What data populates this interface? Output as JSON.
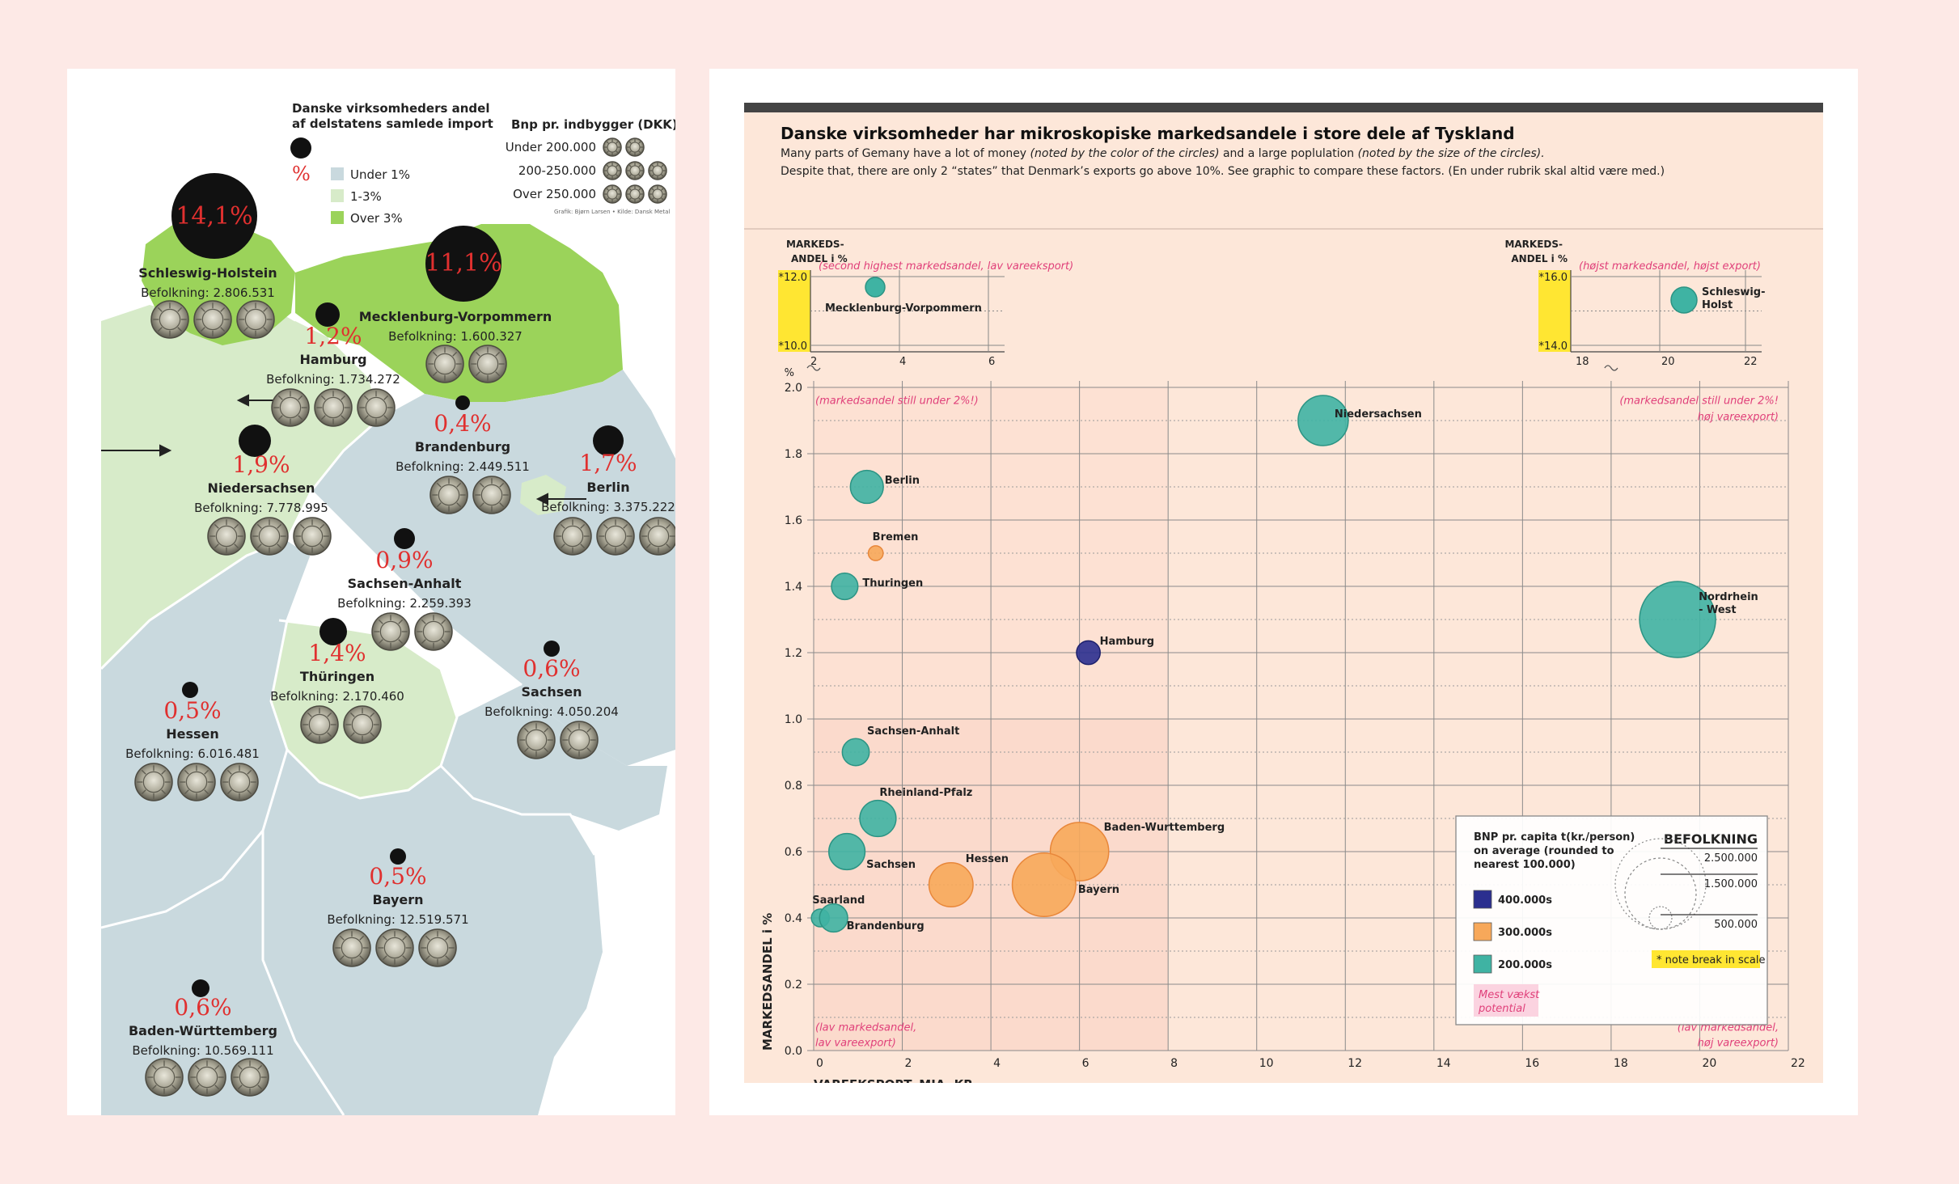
{
  "map": {
    "legend_share": {
      "title_line1": "Danske virksomheders andel",
      "title_line2": "af delstatens samlede import",
      "symbol": "%",
      "items": [
        {
          "label": "Under 1%",
          "color": "#c9d9de"
        },
        {
          "label": "1-3%",
          "color": "#d7ebc9"
        },
        {
          "label": "Over 3%",
          "color": "#9bd35a"
        }
      ]
    },
    "legend_bnp": {
      "title": "Bnp pr. indbygger (DKK)",
      "items": [
        {
          "label": "Under 200.000",
          "coins": 2
        },
        {
          "label": "200-250.000",
          "coins": 3
        },
        {
          "label": "Over 250.000",
          "coins": 4
        }
      ]
    },
    "credit": "Grafik: Bjørn Larsen  •  Kilde: Dansk Metal",
    "states": [
      {
        "name": "Schleswig-Holstein",
        "pct": "14,1%",
        "pop": "Befolkning: 2.806.531",
        "coins": 3
      },
      {
        "name": "Mecklenburg-Vorpommern",
        "pct": "11,1%",
        "pop": "Befolkning: 1.600.327",
        "coins": 2
      },
      {
        "name": "Hamburg",
        "pct": "1,2%",
        "pop": "Befolkning: 1.734.272",
        "coins": 3
      },
      {
        "name": "Brandenburg",
        "pct": "0,4%",
        "pop": "Befolkning: 2.449.511",
        "coins": 2
      },
      {
        "name": "Niedersachsen",
        "pct": "1,9%",
        "pop": "Befolkning: 7.778.995",
        "coins": 3
      },
      {
        "name": "Berlin",
        "pct": "1,7%",
        "pop": "Befolkning: 3.375.222",
        "coins": 3
      },
      {
        "name": "Sachsen-Anhalt",
        "pct": "0,9%",
        "pop": "Befolkning: 2.259.393",
        "coins": 2
      },
      {
        "name": "Thüringen",
        "pct": "1,4%",
        "pop": "Befolkning: 2.170.460",
        "coins": 2
      },
      {
        "name": "Sachsen",
        "pct": "0,6%",
        "pop": "Befolkning: 4.050.204",
        "coins": 2
      },
      {
        "name": "Hessen",
        "pct": "0,5%",
        "pop": "Befolkning: 6.016.481",
        "coins": 3
      },
      {
        "name": "Bayern",
        "pct": "0,5%",
        "pop": "Befolkning: 12.519.571",
        "coins": 3
      },
      {
        "name": "Baden-Württemberg",
        "pct": "0,6%",
        "pop": "Befolkning: 10.569.111",
        "coins": 3
      }
    ]
  },
  "chart_data": {
    "type": "scatter",
    "variant": "bubble",
    "title": "Danske virksomheder har mikroskopiske markedsandele i store dele af Tyskland",
    "subtitle_line1_a": "Many parts of Gemany have a lot of money ",
    "subtitle_line1_b": "(noted by the color of the circles)",
    "subtitle_line1_c": " and a large poplulation ",
    "subtitle_line1_d": "(noted by the size of the circles).",
    "subtitle_line2": "Despite that, there are only 2 “states” that Denmark’s exports go above 10%.  See graphic to compare these factors. (En under rubrik skal altid være med.)",
    "xlabel": "VAREEKSPORT, MIA. KR.",
    "ylabel": "MARKEDSANDEL i %",
    "y_unit": "%",
    "xlim": [
      0,
      22
    ],
    "ylim": [
      0,
      2.0
    ],
    "x_ticks": [
      "0",
      "2",
      "4",
      "6",
      "8",
      "10",
      "12",
      "14",
      "16",
      "18",
      "20",
      "22"
    ],
    "y_ticks": [
      "0.0",
      "0.2",
      "0.4",
      "0.6",
      "0.8",
      "1.0",
      "1.2",
      "1.4",
      "1.6",
      "1.8",
      "2.0"
    ],
    "grid": true,
    "points": [
      {
        "label": "Niedersachsen",
        "x": 11.5,
        "y": 1.9,
        "bnp": "200.000s",
        "pop": 7778995
      },
      {
        "label": "Berlin",
        "x": 1.2,
        "y": 1.7,
        "bnp": "200.000s",
        "pop": 3375222
      },
      {
        "label": "Bremen",
        "x": 1.4,
        "y": 1.5,
        "bnp": "300.000s",
        "pop": 680000
      },
      {
        "label": "Thuringen",
        "x": 0.7,
        "y": 1.4,
        "bnp": "200.000s",
        "pop": 2170460
      },
      {
        "label": "Nordrhein - West",
        "x": 19.5,
        "y": 1.3,
        "bnp": "200.000s",
        "pop": 17900000
      },
      {
        "label": "Hamburg",
        "x": 6.2,
        "y": 1.2,
        "bnp": "400.000s",
        "pop": 1734272
      },
      {
        "label": "Sachsen-Anhalt",
        "x": 0.95,
        "y": 0.9,
        "bnp": "200.000s",
        "pop": 2259393
      },
      {
        "label": "Rheinland-Pfalz",
        "x": 1.45,
        "y": 0.7,
        "bnp": "200.000s",
        "pop": 4070000
      },
      {
        "label": "Baden-Wurttemberg",
        "x": 6.0,
        "y": 0.6,
        "bnp": "300.000s",
        "pop": 10569111
      },
      {
        "label": "Sachsen",
        "x": 0.75,
        "y": 0.6,
        "bnp": "200.000s",
        "pop": 4050204
      },
      {
        "label": "Hessen",
        "x": 3.1,
        "y": 0.5,
        "bnp": "300.000s",
        "pop": 6016481
      },
      {
        "label": "Bayern",
        "x": 5.2,
        "y": 0.5,
        "bnp": "300.000s",
        "pop": 12519571
      },
      {
        "label": "Saarland",
        "x": 0.15,
        "y": 0.4,
        "bnp": "200.000s",
        "pop": 990000
      },
      {
        "label": "Brandenburg",
        "x": 0.45,
        "y": 0.4,
        "bnp": "200.000s",
        "pop": 2449511
      }
    ],
    "inset_left": {
      "ylabel_line1": "MARKEDS-",
      "ylabel_line2": "ANDEL i %",
      "y_ticks": [
        "*12.0",
        "*10.0"
      ],
      "x_ticks": [
        "2",
        "4",
        "6"
      ],
      "note": "(second highest markedsandel, lav vareeksport)",
      "point": {
        "label": "Mecklenburg-Vorpommern",
        "x": 3.4,
        "y": 11.1,
        "bnp": "200.000s"
      }
    },
    "inset_right": {
      "ylabel_line1": "MARKEDS-",
      "ylabel_line2": "ANDEL i %",
      "y_ticks": [
        "*16.0",
        "*14.0"
      ],
      "x_ticks": [
        "18",
        "20",
        "22"
      ],
      "note": "(højst markedsandel, højst export)",
      "point": {
        "label_line1": "Schleswig-",
        "label_line2": "Holst",
        "x": 20.0,
        "y": 14.1,
        "bnp": "200.000s"
      }
    },
    "annotations": {
      "top_left": "(markedsandel still under 2%!)",
      "top_right_1": "(markedsandel still under 2%!",
      "top_right_2": "høj vareexport)",
      "bottom_left_1": "(lav markedsandel,",
      "bottom_left_2": "lav vareexport)",
      "bottom_right_1": "(lav markedsandel,",
      "bottom_right_2": "høj vareexport)"
    },
    "legend": {
      "bnp_title_1": "BNP pr. capita t(kr./person)",
      "bnp_title_2": "on average (rounded to",
      "bnp_title_3": "nearest 100.000)",
      "bnp_items": [
        {
          "label": "400.000s",
          "color": "#2b2f8f"
        },
        {
          "label": "300.000s",
          "color": "#f7a85a"
        },
        {
          "label": "200.000s",
          "color": "#3fb3a3"
        }
      ],
      "size_title": "BEFOLKNING",
      "size_items": [
        "2.500.000",
        "1.500.000",
        "500.000"
      ],
      "note": "* note break in scale",
      "potential_1": "Mest vækst",
      "potential_2": "potential"
    },
    "colors": {
      "400.000s": "#2b2f8f",
      "300.000s": "#f7a85a",
      "200.000s": "#3fb3a3"
    }
  }
}
